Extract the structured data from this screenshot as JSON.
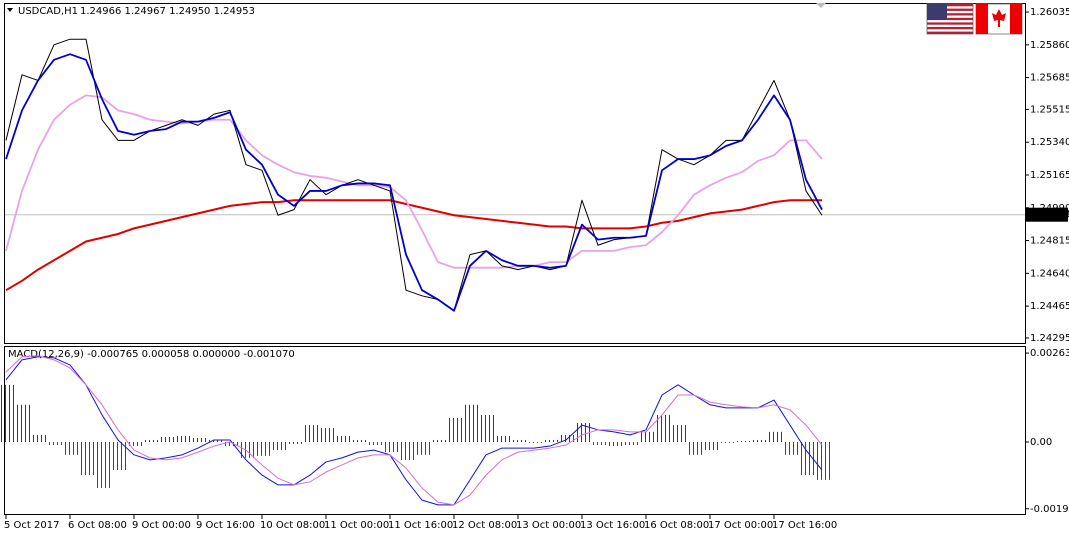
{
  "chart_data": [
    {
      "type": "line",
      "title": "USDCAD,H1",
      "quote": "1.24966 1.24967 1.24950 1.24953",
      "series": [
        {
          "color": "#000000",
          "values": [
            1.2535,
            1.257,
            1.2567,
            1.2586,
            1.2589,
            1.2589,
            1.2546,
            1.2535,
            1.2535,
            1.254,
            1.2543,
            1.2546,
            1.2543,
            1.2549,
            1.2551,
            1.2522,
            1.2519,
            1.2495,
            1.2498,
            1.2514,
            1.2506,
            1.2511,
            1.2514,
            1.2511,
            1.2508,
            1.2455,
            1.2452,
            1.245,
            1.2444,
            1.2474,
            1.2476,
            1.2468,
            1.2466,
            1.2468,
            1.2466,
            1.2468,
            1.2503,
            1.2479,
            1.2482,
            1.2483,
            1.2484,
            1.253,
            1.2525,
            1.2522,
            1.2527,
            1.2535,
            1.2535,
            1.2551,
            1.2567,
            1.2546,
            1.2508,
            1.2495
          ]
        },
        {
          "color": "#0000cc",
          "values": [
            1.2525,
            1.2551,
            1.2567,
            1.2578,
            1.2581,
            1.2578,
            1.2557,
            1.254,
            1.2538,
            1.254,
            1.2541,
            1.2545,
            1.2545,
            1.2547,
            1.255,
            1.253,
            1.2522,
            1.2506,
            1.25,
            1.2508,
            1.2508,
            1.2511,
            1.2512,
            1.2512,
            1.2511,
            1.2474,
            1.2455,
            1.245,
            1.2444,
            1.2468,
            1.2476,
            1.2471,
            1.2468,
            1.2468,
            1.2467,
            1.2468,
            1.249,
            1.2482,
            1.2483,
            1.2483,
            1.2484,
            1.2519,
            1.2525,
            1.2525,
            1.2527,
            1.2532,
            1.2535,
            1.2546,
            1.2559,
            1.2546,
            1.2514,
            1.2498
          ]
        },
        {
          "color": "#e8a2e8",
          "values": [
            1.2476,
            1.2508,
            1.253,
            1.2546,
            1.2554,
            1.2559,
            1.2558,
            1.2551,
            1.2549,
            1.2546,
            1.2545,
            1.2544,
            1.2545,
            1.2546,
            1.2546,
            1.2535,
            1.2527,
            1.2522,
            1.2518,
            1.2516,
            1.2515,
            1.2513,
            1.2511,
            1.2511,
            1.251,
            1.2503,
            1.2487,
            1.247,
            1.2467,
            1.2467,
            1.2467,
            1.2467,
            1.2468,
            1.2468,
            1.247,
            1.247,
            1.2476,
            1.2476,
            1.2476,
            1.2478,
            1.2479,
            1.2486,
            1.2495,
            1.2506,
            1.2511,
            1.2515,
            1.2518,
            1.2524,
            1.2527,
            1.2535,
            1.2535,
            1.2525
          ]
        },
        {
          "color": "#e00000",
          "values": [
            1.2455,
            1.246,
            1.2466,
            1.2471,
            1.2476,
            1.2481,
            1.2483,
            1.2485,
            1.2488,
            1.249,
            1.2492,
            1.2494,
            1.2496,
            1.2498,
            1.25,
            1.2501,
            1.2502,
            1.2502,
            1.2503,
            1.2503,
            1.2503,
            1.2503,
            1.2503,
            1.2503,
            1.2503,
            1.2501,
            1.2499,
            1.2497,
            1.2495,
            1.2494,
            1.2493,
            1.2492,
            1.2491,
            1.249,
            1.2489,
            1.2489,
            1.2488,
            1.2488,
            1.2488,
            1.2488,
            1.2489,
            1.2491,
            1.2492,
            1.2494,
            1.2496,
            1.2497,
            1.2498,
            1.25,
            1.2502,
            1.2503,
            1.2503,
            1.2503
          ]
        }
      ],
      "ylim": [
        1.24268,
        1.26078
      ],
      "yticks": [
        1.26035,
        {
          "value": 1.2586,
          "label": "1.25860"
        },
        1.25685,
        1.25515,
        {
          "value": 1.2534,
          "label": "1.25340"
        },
        1.25165,
        {
          "value": 1.2499,
          "label": "1.24990"
        },
        1.24815,
        {
          "value": 1.2464,
          "label": "1.24640"
        },
        1.24465,
        1.24295
      ],
      "last_price": 1.24953
    },
    {
      "type": "macd",
      "title": "MACD(12,26,9) -0.000765 0.000058 0.000000 -0.001070",
      "categories": [
        "5 Oct 2017",
        null,
        null,
        null,
        "6 Oct 08:00",
        null,
        null,
        null,
        "9 Oct 00:00",
        null,
        null,
        null,
        "9 Oct 16:00",
        null,
        null,
        null,
        "10 Oct 08:00",
        null,
        null,
        null,
        "11 Oct 00:00",
        null,
        null,
        null,
        "11 Oct 16:00",
        null,
        null,
        null,
        "12 Oct 08:00",
        null,
        null,
        null,
        "13 Oct 00:00",
        null,
        null,
        null,
        "13 Oct 16:00",
        null,
        null,
        null,
        "16 Oct 08:00",
        null,
        null,
        null,
        "17 Oct 00:00",
        null,
        null,
        null,
        "17 Oct 16:00",
        null,
        null,
        null
      ],
      "histogram": {
        "positive_color": "#cc0000",
        "negative_color": "#007700",
        "values": [
          0.00169,
          0.0011,
          0.00021,
          -9e-05,
          -0.00038,
          -0.00098,
          -0.00136,
          -0.00083,
          -0.00012,
          6e-05,
          0.00015,
          0.00018,
          0.00012,
          6e-05,
          -0.00012,
          -0.00047,
          -0.00041,
          -0.00024,
          -6e-05,
          0.0005,
          0.00041,
          0.00018,
          6e-05,
          -9e-05,
          -0.0003,
          -0.00053,
          -0.00038,
          6e-05,
          0.00071,
          0.0011,
          0.0008,
          0.00018,
          6e-05,
          -3e-05,
          6e-05,
          0.00021,
          0.00056,
          -9e-05,
          -0.00012,
          -9e-05,
          0.0003,
          0.0008,
          0.0005,
          -0.00038,
          -0.00024,
          -3e-05,
          3e-05,
          6e-05,
          0.0003,
          -0.00038,
          -0.00098,
          -0.00112
        ]
      },
      "series": [
        {
          "color": "#1010e0",
          "values": [
            0.00184,
            0.00243,
            0.00252,
            0.00249,
            0.00228,
            0.00169,
            0.0008,
            6e-05,
            -0.00038,
            -0.00053,
            -0.00047,
            -0.00038,
            -0.00018,
            6e-05,
            6e-05,
            -0.00053,
            -0.00098,
            -0.00127,
            -0.00127,
            -0.00098,
            -0.00059,
            -0.00047,
            -0.0003,
            -0.00024,
            -0.00038,
            -0.00112,
            -0.00172,
            -0.00186,
            -0.00186,
            -0.00112,
            -0.00038,
            -0.00018,
            -0.00018,
            -0.00018,
            -0.00012,
            6e-05,
            0.0005,
            0.00036,
            0.0003,
            0.00021,
            0.00036,
            0.00139,
            0.00169,
            0.00139,
            0.0011,
            0.00101,
            0.00101,
            0.00101,
            0.00124,
            0.0005,
            -0.00024,
            -0.00083
          ]
        },
        {
          "color": "#d070d8",
          "values": [
            0.00207,
            0.00252,
            0.00255,
            0.00243,
            0.00219,
            0.00169,
            0.0011,
            0.00036,
            -0.00024,
            -0.00047,
            -0.00053,
            -0.00047,
            -0.0003,
            -0.00012,
            0,
            -0.00024,
            -0.00068,
            -0.00107,
            -0.00127,
            -0.00118,
            -0.00089,
            -0.00068,
            -0.00047,
            -0.00038,
            -0.00038,
            -0.00077,
            -0.00136,
            -0.00178,
            -0.00186,
            -0.00157,
            -0.00098,
            -0.00053,
            -0.0003,
            -0.00024,
            -0.00018,
            -9e-05,
            0.00021,
            0.00036,
            0.00036,
            0.0003,
            0.0003,
            0.0008,
            0.00139,
            0.00139,
            0.00118,
            0.0011,
            0.00104,
            0.00101,
            0.0011,
            0.00095,
            0.0005,
            -9e-05
          ]
        }
      ],
      "ylim": [
        -0.00216,
        0.00281
      ],
      "yticks": [
        0.00263,
        {
          "value": 0,
          "label": "0.00"
        },
        -0.001976
      ]
    }
  ]
}
